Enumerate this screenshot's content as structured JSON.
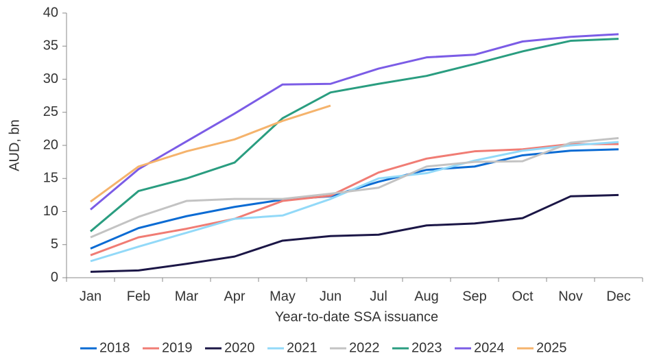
{
  "chart_data": {
    "type": "line",
    "x_label": "Year-to-date SSA issuance",
    "y_label": "AUD, bn",
    "categories": [
      "Jan",
      "Feb",
      "Mar",
      "Apr",
      "May",
      "Jun",
      "Jul",
      "Aug",
      "Sep",
      "Oct",
      "Nov",
      "Dec"
    ],
    "ylim": [
      0,
      40
    ],
    "yticks": [
      0,
      5,
      10,
      15,
      20,
      25,
      30,
      35,
      40
    ],
    "legend": "bottom",
    "series": [
      {
        "name": "2018",
        "color": "#0b6bd3",
        "values": [
          4.4,
          7.5,
          9.3,
          10.7,
          11.8,
          12.3,
          14.5,
          16.3,
          16.8,
          18.5,
          19.2,
          19.4
        ]
      },
      {
        "name": "2019",
        "color": "#f07c74",
        "values": [
          3.4,
          6.1,
          7.4,
          8.9,
          11.6,
          12.4,
          15.9,
          18.0,
          19.1,
          19.4,
          20.2,
          20.2
        ]
      },
      {
        "name": "2020",
        "color": "#1b1646",
        "values": [
          0.9,
          1.1,
          2.1,
          3.2,
          5.6,
          6.3,
          6.5,
          7.9,
          8.2,
          9.0,
          12.3,
          12.5
        ]
      },
      {
        "name": "2021",
        "color": "#92d9f8",
        "values": [
          2.5,
          4.7,
          6.8,
          8.9,
          9.4,
          11.9,
          15.0,
          15.8,
          17.7,
          19.2,
          20.0,
          20.5
        ]
      },
      {
        "name": "2022",
        "color": "#c3c3c3",
        "values": [
          6.1,
          9.2,
          11.6,
          11.9,
          11.9,
          12.7,
          13.6,
          16.8,
          17.5,
          17.6,
          20.4,
          21.1
        ]
      },
      {
        "name": "2023",
        "color": "#2a9d80",
        "values": [
          7.0,
          13.1,
          15.0,
          17.4,
          24.1,
          28.0,
          29.3,
          30.5,
          32.3,
          34.2,
          35.8,
          36.1
        ]
      },
      {
        "name": "2024",
        "color": "#7b5ce6",
        "values": [
          10.3,
          16.4,
          20.6,
          24.8,
          29.2,
          29.3,
          31.6,
          33.3,
          33.7,
          35.7,
          36.4,
          36.8
        ]
      },
      {
        "name": "2025",
        "color": "#f5b36c",
        "values": [
          11.5,
          16.8,
          19.1,
          20.9,
          23.7,
          26.0,
          null,
          null,
          null,
          null,
          null,
          null
        ]
      }
    ]
  }
}
